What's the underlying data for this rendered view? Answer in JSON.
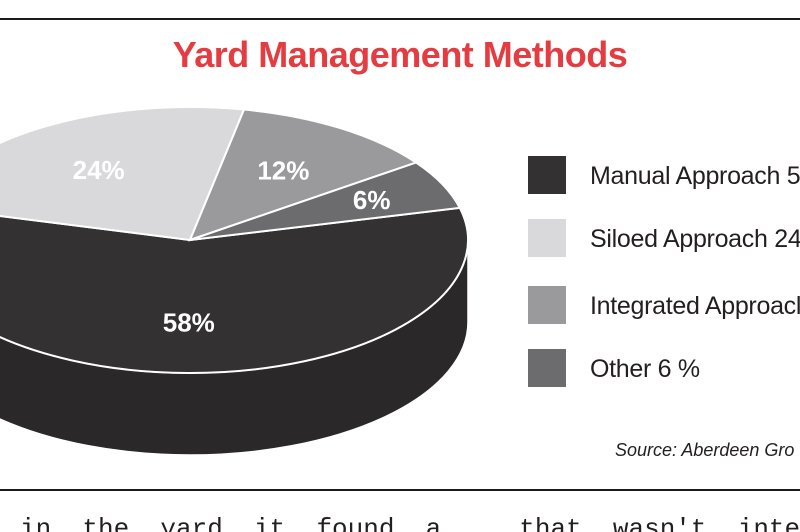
{
  "figure": {
    "source": "Source: Aberdeen Gro",
    "body_text": "in  the  yard  it  found  a     that  wasn't  integrated  w"
  },
  "chart_data": {
    "type": "pie",
    "title": "Yard Management Methods",
    "slices": [
      {
        "label": "Manual Approach 5",
        "value": 58,
        "data_label": "58%",
        "color": "#333132"
      },
      {
        "label": "Siloed Approach 24",
        "value": 24,
        "data_label": "24%",
        "color": "#d9d9db"
      },
      {
        "label": "Integrated Approacl",
        "value": 12,
        "data_label": "12%",
        "color": "#9a9a9c"
      },
      {
        "label": "Other 6 %",
        "value": 6,
        "data_label": "6%",
        "color": "#6c6b6d"
      }
    ],
    "legend_position": "right"
  }
}
